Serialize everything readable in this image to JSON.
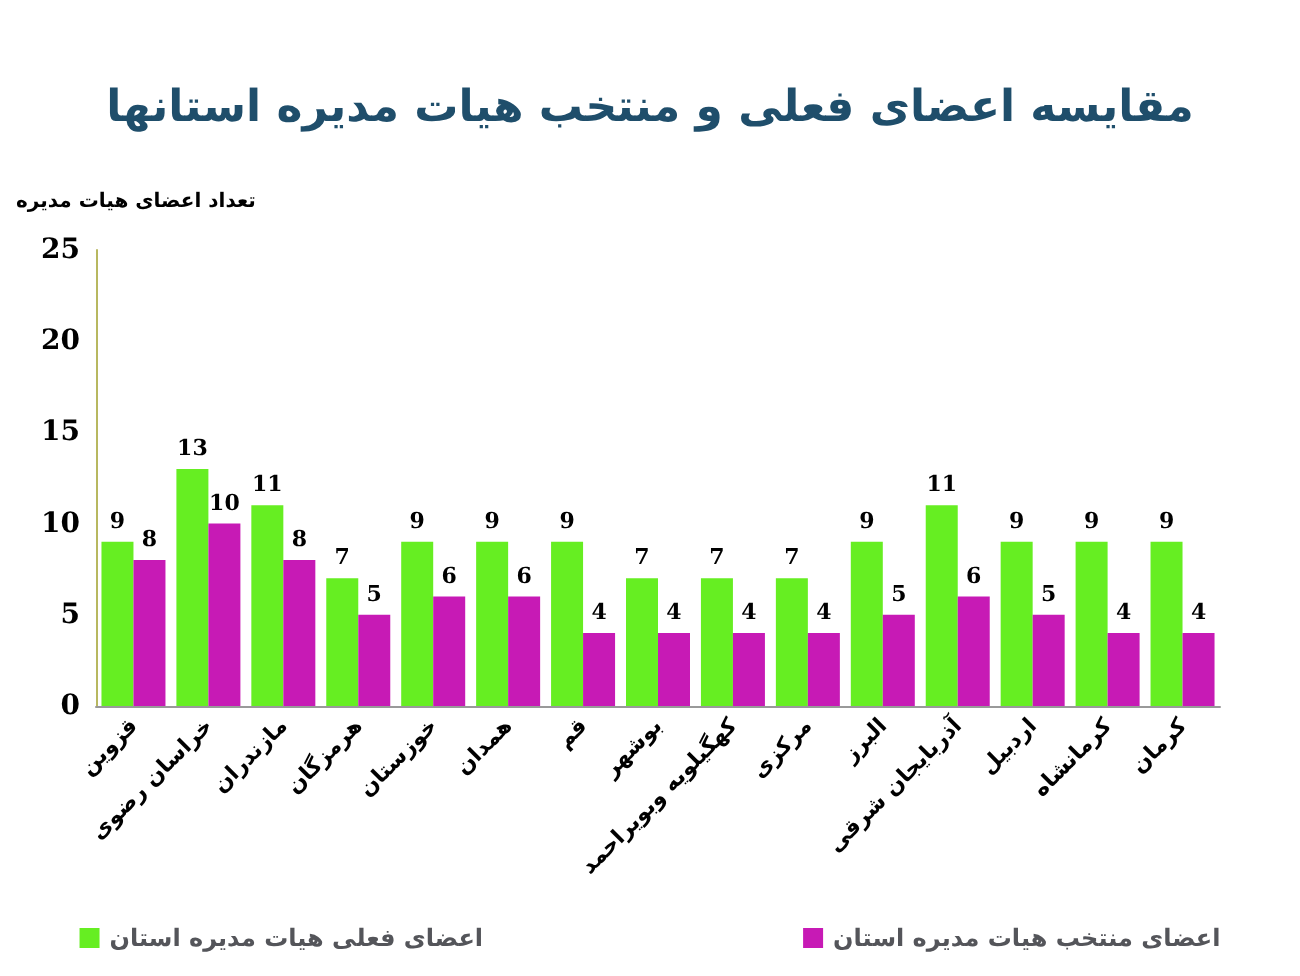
{
  "chart_data": {
    "type": "bar",
    "title": "مقایسه اعضای فعلی و منتخب هیات مدیره استانها",
    "ylabel": "تعداد اعضای هیات مدیره",
    "categories": [
      "قزوین",
      "خراسان رضوی",
      "مازندران",
      "هرمزگان",
      "خوزستان",
      "همدان",
      "قم",
      "بوشهر",
      "کهگیلویه وبویراحمد",
      "مرکزی",
      "البرز",
      "آذربایجان شرقی",
      "اردبیل",
      "کرمانشاه",
      "کرمان"
    ],
    "series": [
      {
        "name": "اعضای فعلی هیات مدیره استان",
        "color": "#66ee22",
        "values": [
          9,
          13,
          11,
          7,
          9,
          9,
          9,
          7,
          7,
          7,
          9,
          11,
          9,
          9,
          9
        ]
      },
      {
        "name": "اعضای منتخب هیات مدیره استان",
        "color": "#c71ab5",
        "values": [
          8,
          10,
          8,
          5,
          6,
          6,
          4,
          4,
          4,
          4,
          5,
          6,
          5,
          4,
          4
        ]
      }
    ],
    "ylim": [
      0,
      25
    ],
    "yticks": [
      0,
      5,
      10,
      15,
      20,
      25
    ],
    "grid": false,
    "legend": "bottom",
    "data_labels": true
  }
}
